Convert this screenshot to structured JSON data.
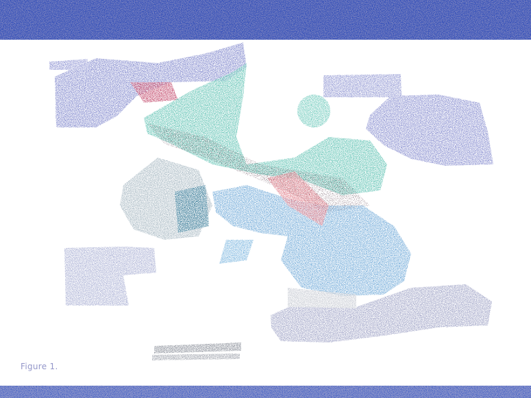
{
  "caption": {
    "label": "Figure 1."
  },
  "colors": {
    "band": "#0a1a8c",
    "teal": "#6fc9bb",
    "blue": "#7fb4dd",
    "periwinkle": "#8f93d0",
    "gray": "#c9ccd3",
    "red": "#d05a6a"
  },
  "icons": {
    "figure": "noise-texture-figure"
  }
}
